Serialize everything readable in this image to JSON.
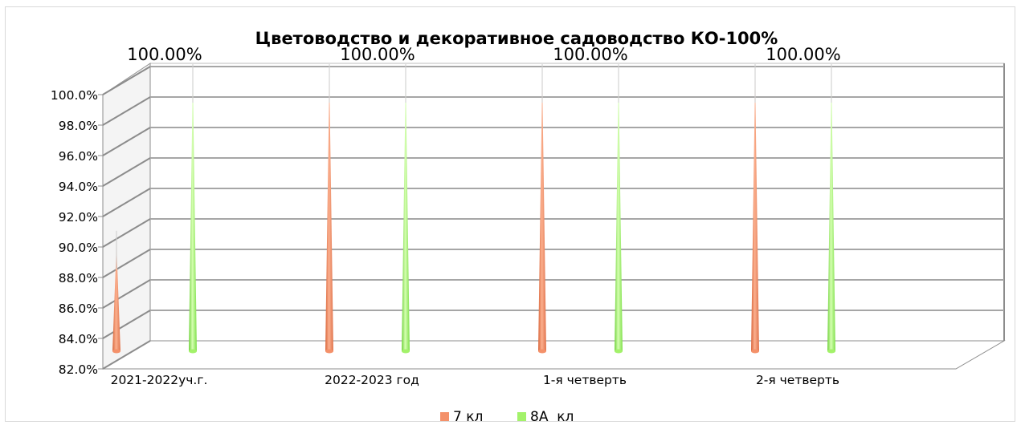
{
  "chart_data": {
    "type": "bar",
    "title": "Цветоводство и декоративное садоводство КО-100%",
    "categories": [
      "2021-2022уч.г.",
      "2022-2023 год",
      "1-я четверть",
      "2-я четверть"
    ],
    "series": [
      {
        "name": "7 кл",
        "color": "#f4916a",
        "values": [
          89.0,
          100.0,
          100.0,
          100.0
        ]
      },
      {
        "name": "8А  кл",
        "color": "#a3f26a",
        "values": [
          100.0,
          100.0,
          100.0,
          100.0
        ]
      }
    ],
    "data_labels": [
      "100.00%",
      "100.00%",
      "100.00%",
      "100.00%"
    ],
    "y_ticks": [
      "82.0%",
      "84.0%",
      "86.0%",
      "88.0%",
      "90.0%",
      "92.0%",
      "94.0%",
      "96.0%",
      "98.0%",
      "100.0%"
    ],
    "ylim": [
      82,
      100
    ],
    "xlabel": "",
    "ylabel": "",
    "grid": true,
    "legend_position": "bottom",
    "style": "3d-cone"
  }
}
